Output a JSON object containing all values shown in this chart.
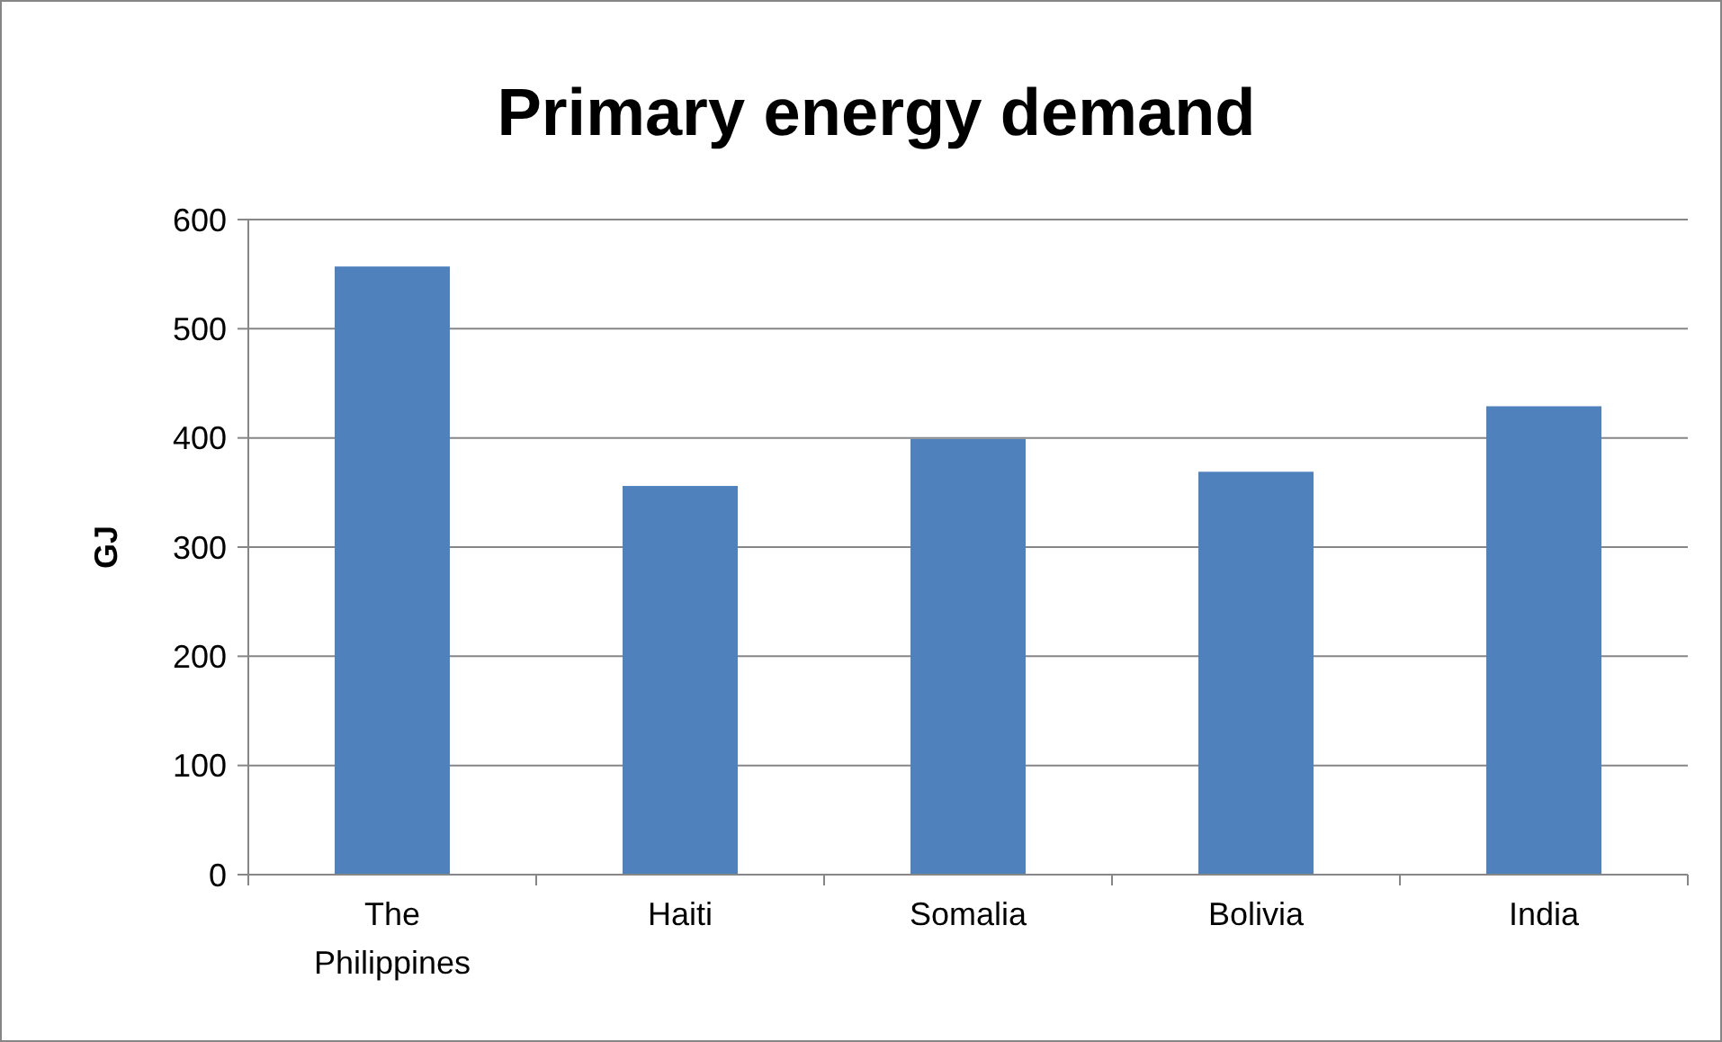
{
  "chart_data": {
    "type": "bar",
    "title": "Primary energy demand",
    "ylabel": "GJ",
    "categories": [
      "The Philippines",
      "Haiti",
      "Somalia",
      "Bolivia",
      "India"
    ],
    "values": [
      557,
      356,
      399,
      369,
      429
    ],
    "color": "#4f81bd",
    "ylim": [
      0,
      600
    ],
    "yticks": [
      0,
      100,
      200,
      300,
      400,
      500,
      600
    ],
    "grid": "y"
  }
}
